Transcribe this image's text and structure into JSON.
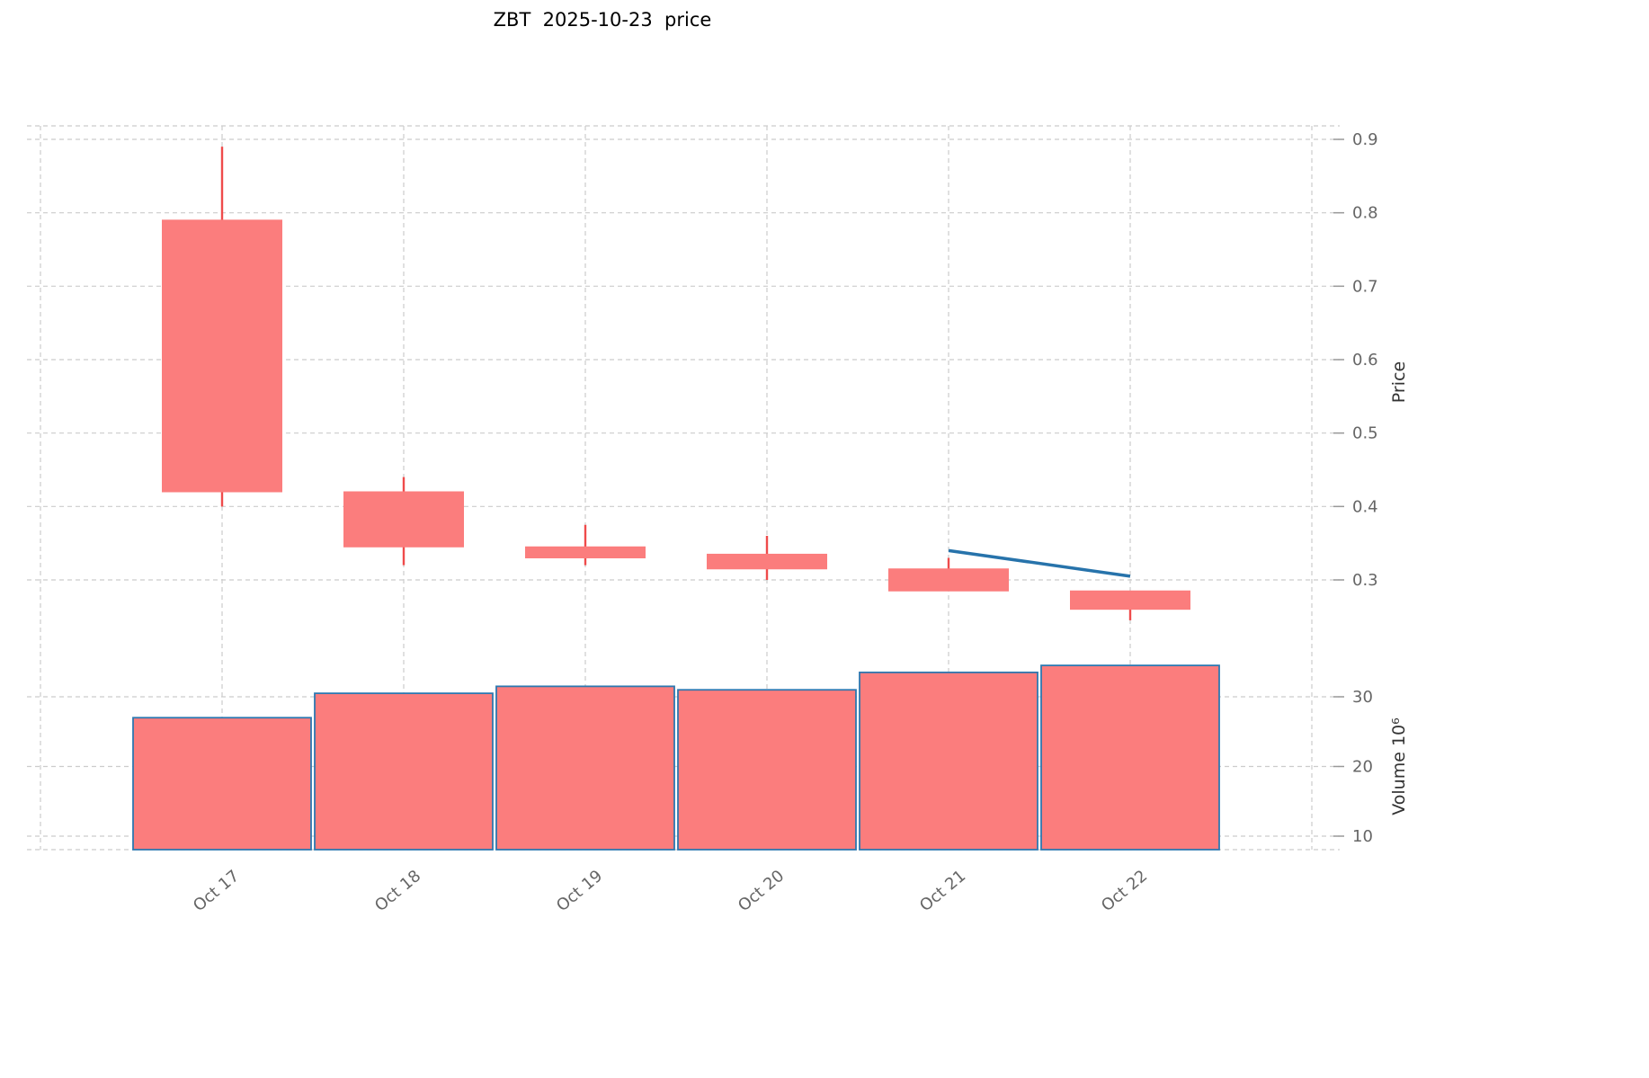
{
  "title": "ZBT  2025-10-23  price",
  "chart_data": {
    "type": "candlestick",
    "title": "ZBT  2025-10-23  price",
    "x": [
      "Oct 17",
      "Oct 18",
      "Oct 19",
      "Oct 20",
      "Oct 21",
      "Oct 22"
    ],
    "series": [
      {
        "name": "price",
        "type": "candlestick",
        "ohlc": [
          {
            "open": 0.79,
            "high": 0.89,
            "low": 0.4,
            "close": 0.42
          },
          {
            "open": 0.42,
            "high": 0.44,
            "low": 0.32,
            "close": 0.345
          },
          {
            "open": 0.345,
            "high": 0.375,
            "low": 0.32,
            "close": 0.33
          },
          {
            "open": 0.335,
            "high": 0.36,
            "low": 0.3,
            "close": 0.315
          },
          {
            "open": 0.315,
            "high": 0.33,
            "low": 0.285,
            "close": 0.285
          },
          {
            "open": 0.285,
            "high": 0.285,
            "low": 0.245,
            "close": 0.26
          }
        ]
      },
      {
        "name": "volume",
        "type": "bar",
        "unit": "10^6",
        "values": [
          27,
          30.5,
          31.5,
          31,
          33.5,
          34.5
        ]
      },
      {
        "name": "trend",
        "type": "line",
        "points": [
          {
            "x": "Oct 21",
            "y": 0.34
          },
          {
            "x": "Oct 22",
            "y": 0.305
          }
        ]
      }
    ],
    "price_axis": {
      "label": "Price",
      "side": "right",
      "ticks": [
        "0.3",
        "0.4",
        "0.5",
        "0.6",
        "0.7",
        "0.8",
        "0.9"
      ]
    },
    "volume_axis": {
      "label": "Volume  10⁶",
      "side": "right",
      "ticks": [
        "10",
        "20",
        "30"
      ]
    },
    "x_axis": {
      "tick_labels": [
        "Oct 17",
        "Oct 18",
        "Oct 19",
        "Oct 20",
        "Oct 21",
        "Oct 22"
      ],
      "rotation": -40
    },
    "grid": true,
    "legend": false,
    "colors": {
      "candle_fill": "#fb7d7d",
      "wick": "#ef4b4b",
      "volume_fill": "#fb7d7d",
      "volume_edge": "#2e78b0",
      "trend_line": "#2773ab",
      "grid": "#cccccc",
      "tick_text": "#666666",
      "axis_label_text": "#333333",
      "title_text": "#000000",
      "background": "#ffffff"
    }
  }
}
